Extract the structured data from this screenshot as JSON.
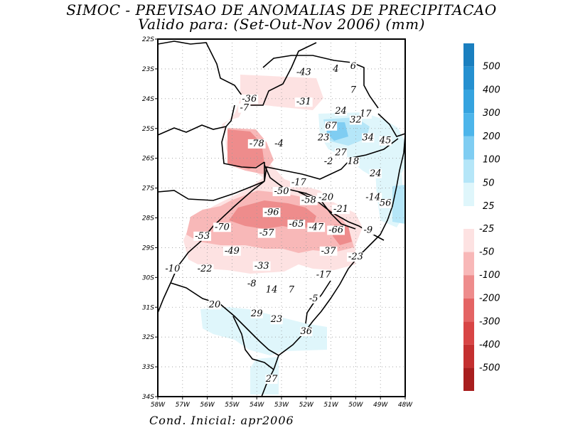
{
  "title": {
    "line1": "SIMOC - PREVISAO DE ANOMALIAS DE PRECIPITACAO",
    "line2": "Valido para: (Set-Out-Nov 2006) (mm)"
  },
  "footer": {
    "cond_label": "Cond. Inicial: apr2006"
  },
  "axes": {
    "lat_labels": [
      "22S",
      "23S",
      "24S",
      "25S",
      "26S",
      "27S",
      "28S",
      "29S",
      "30S",
      "31S",
      "32S",
      "33S",
      "34S"
    ],
    "lon_labels": [
      "58W",
      "57W",
      "56W",
      "55W",
      "54W",
      "53W",
      "52W",
      "51W",
      "50W",
      "49W",
      "48W"
    ]
  },
  "colorbar": {
    "positive": [
      {
        "label": "500",
        "color": "#1a7fbf"
      },
      {
        "label": "400",
        "color": "#2590d0"
      },
      {
        "label": "300",
        "color": "#35a3df"
      },
      {
        "label": "200",
        "color": "#4db5ea"
      },
      {
        "label": "100",
        "color": "#7fcdf2"
      },
      {
        "label": "50",
        "color": "#b5e6f8"
      },
      {
        "label": "25",
        "color": "#dff6fb"
      }
    ],
    "negative": [
      {
        "label": "-25",
        "color": "#fde2e2"
      },
      {
        "label": "-50",
        "color": "#f8b8b8"
      },
      {
        "label": "-100",
        "color": "#ee8c8c"
      },
      {
        "label": "-200",
        "color": "#e46464"
      },
      {
        "label": "-300",
        "color": "#d84545"
      },
      {
        "label": "-400",
        "color": "#c43030"
      },
      {
        "label": "-500",
        "color": "#a81e1e"
      }
    ]
  },
  "map_values": [
    {
      "lon": -52.1,
      "lat": -23.2,
      "text": "-43"
    },
    {
      "lon": -50.8,
      "lat": -23.1,
      "text": "4"
    },
    {
      "lon": -50.1,
      "lat": -23.0,
      "text": "6"
    },
    {
      "lon": -50.1,
      "lat": -23.8,
      "text": "7"
    },
    {
      "lon": -54.3,
      "lat": -24.1,
      "text": "-36"
    },
    {
      "lon": -52.1,
      "lat": -24.2,
      "text": "-31"
    },
    {
      "lon": -54.5,
      "lat": -24.4,
      "text": "-7"
    },
    {
      "lon": -50.6,
      "lat": -24.5,
      "text": "24"
    },
    {
      "lon": -49.6,
      "lat": -24.6,
      "text": "17"
    },
    {
      "lon": -50.0,
      "lat": -24.8,
      "text": "32"
    },
    {
      "lon": -51.0,
      "lat": -25.0,
      "text": "67"
    },
    {
      "lon": -51.3,
      "lat": -25.4,
      "text": "23"
    },
    {
      "lon": -54.0,
      "lat": -25.6,
      "text": "-78"
    },
    {
      "lon": -53.1,
      "lat": -25.6,
      "text": "-4"
    },
    {
      "lon": -49.5,
      "lat": -25.4,
      "text": "34"
    },
    {
      "lon": -48.8,
      "lat": -25.5,
      "text": "45"
    },
    {
      "lon": -50.6,
      "lat": -25.9,
      "text": "27"
    },
    {
      "lon": -50.1,
      "lat": -26.2,
      "text": "18"
    },
    {
      "lon": -51.1,
      "lat": -26.2,
      "text": "-2"
    },
    {
      "lon": -49.2,
      "lat": -26.6,
      "text": "24"
    },
    {
      "lon": -52.3,
      "lat": -26.9,
      "text": "-17"
    },
    {
      "lon": -53.0,
      "lat": -27.2,
      "text": "-50"
    },
    {
      "lon": -51.2,
      "lat": -27.4,
      "text": "-20"
    },
    {
      "lon": -51.9,
      "lat": -27.5,
      "text": "-58"
    },
    {
      "lon": -49.3,
      "lat": -27.4,
      "text": "-14"
    },
    {
      "lon": -48.8,
      "lat": -27.6,
      "text": "56"
    },
    {
      "lon": -50.6,
      "lat": -27.8,
      "text": "-21"
    },
    {
      "lon": -53.4,
      "lat": -27.9,
      "text": "-96"
    },
    {
      "lon": -55.4,
      "lat": -28.4,
      "text": "-70"
    },
    {
      "lon": -52.4,
      "lat": -28.3,
      "text": "-65"
    },
    {
      "lon": -51.6,
      "lat": -28.4,
      "text": "-47"
    },
    {
      "lon": -50.8,
      "lat": -28.5,
      "text": "-66"
    },
    {
      "lon": -49.5,
      "lat": -28.5,
      "text": "-9"
    },
    {
      "lon": -53.6,
      "lat": -28.6,
      "text": "-57"
    },
    {
      "lon": -56.2,
      "lat": -28.7,
      "text": "-53"
    },
    {
      "lon": -55.0,
      "lat": -29.2,
      "text": "-49"
    },
    {
      "lon": -51.1,
      "lat": -29.2,
      "text": "-37"
    },
    {
      "lon": -50.0,
      "lat": -29.4,
      "text": "-23"
    },
    {
      "lon": -53.8,
      "lat": -29.7,
      "text": "-33"
    },
    {
      "lon": -57.4,
      "lat": -29.8,
      "text": "-10"
    },
    {
      "lon": -56.1,
      "lat": -29.8,
      "text": "-22"
    },
    {
      "lon": -51.3,
      "lat": -30.0,
      "text": "-17"
    },
    {
      "lon": -54.2,
      "lat": -30.3,
      "text": "-8"
    },
    {
      "lon": -53.4,
      "lat": -30.5,
      "text": "14"
    },
    {
      "lon": -52.6,
      "lat": -30.5,
      "text": "7"
    },
    {
      "lon": -51.7,
      "lat": -30.8,
      "text": "-5"
    },
    {
      "lon": -55.7,
      "lat": -31.0,
      "text": "20"
    },
    {
      "lon": -54.0,
      "lat": -31.3,
      "text": "29"
    },
    {
      "lon": -53.2,
      "lat": -31.5,
      "text": "23"
    },
    {
      "lon": -52.0,
      "lat": -31.9,
      "text": "36"
    },
    {
      "lon": -53.4,
      "lat": -33.5,
      "text": "27"
    }
  ]
}
